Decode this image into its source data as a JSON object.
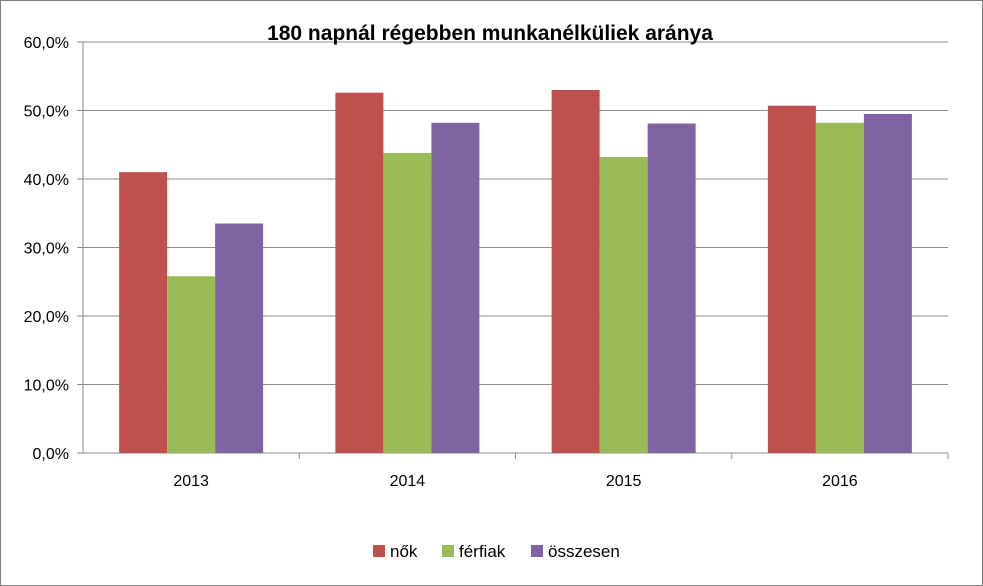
{
  "chart_data": {
    "type": "bar",
    "title": "180 napnál régebben munkanélküliek aránya",
    "categories": [
      "2013",
      "2014",
      "2015",
      "2016"
    ],
    "series": [
      {
        "name": "nők",
        "values": [
          41.0,
          52.6,
          53.0,
          50.7
        ],
        "color": "#c0504d"
      },
      {
        "name": "férfiak",
        "values": [
          25.8,
          43.8,
          43.2,
          48.2
        ],
        "color": "#9bbb59"
      },
      {
        "name": "összesen",
        "values": [
          33.5,
          48.2,
          48.1,
          49.5
        ],
        "color": "#8064a2"
      }
    ],
    "ylim": [
      0,
      60
    ],
    "yticks": [
      "0,0%",
      "10,0%",
      "20,0%",
      "30,0%",
      "40,0%",
      "50,0%",
      "60,0%"
    ],
    "ytick_values": [
      0,
      10,
      20,
      30,
      40,
      50,
      60
    ],
    "xlabel": "",
    "ylabel": "",
    "grid": true,
    "legend_position": "bottom"
  }
}
